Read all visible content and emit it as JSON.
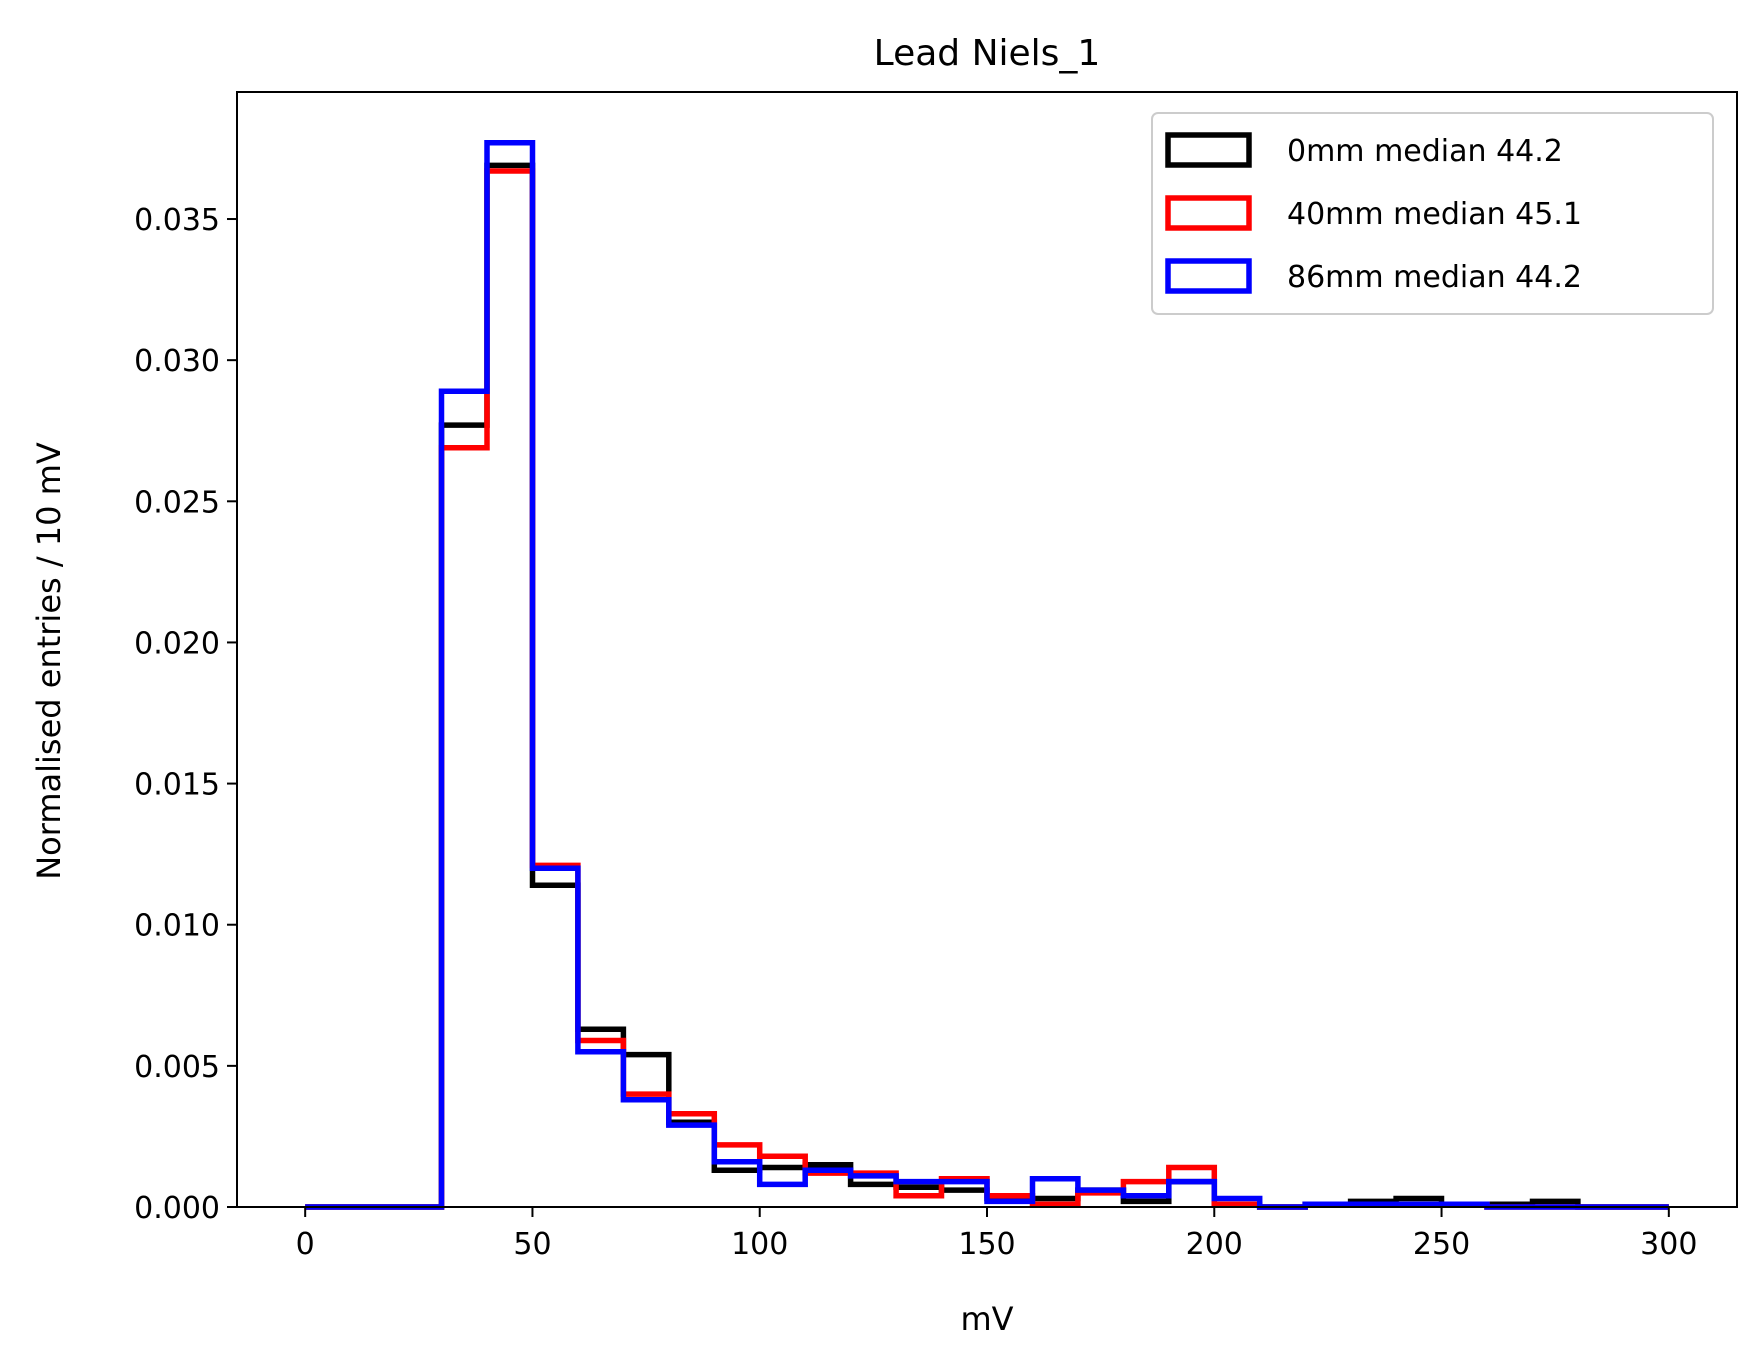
{
  "chart_data": {
    "type": "histogram-step",
    "title": "Lead Niels_1",
    "xlabel": "mV",
    "ylabel": "Normalised entries / 10 mV",
    "xlim": [
      -15,
      315
    ],
    "ylim": [
      0,
      0.0395
    ],
    "xticks": [
      0,
      50,
      100,
      150,
      200,
      250,
      300
    ],
    "xtick_labels": [
      "0",
      "50",
      "100",
      "150",
      "200",
      "250",
      "300"
    ],
    "yticks": [
      0,
      0.005,
      0.01,
      0.015,
      0.02,
      0.025,
      0.03,
      0.035
    ],
    "ytick_labels": [
      "0.000",
      "0.005",
      "0.010",
      "0.015",
      "0.020",
      "0.025",
      "0.030",
      "0.035"
    ],
    "grid": false,
    "legend_position": "top-right",
    "bin_edges": [
      0,
      10,
      20,
      30,
      40,
      50,
      60,
      70,
      80,
      90,
      100,
      110,
      120,
      130,
      140,
      150,
      160,
      170,
      180,
      190,
      200,
      210,
      220,
      230,
      240,
      250,
      260,
      270,
      280,
      290,
      300
    ],
    "series": [
      {
        "name": "0mm median 44.2",
        "color": "#000000",
        "values": [
          0,
          0,
          0,
          0.0277,
          0.0369,
          0.0114,
          0.0063,
          0.0054,
          0.003,
          0.0013,
          0.0014,
          0.0015,
          0.0008,
          0.0007,
          0.0006,
          0.0003,
          0.0003,
          0.0006,
          0.0002,
          0.0009,
          0.0001,
          0,
          0.0001,
          0.0002,
          0.0003,
          0.0001,
          0.0001,
          0.0002,
          0,
          0
        ]
      },
      {
        "name": "40mm median 45.1",
        "color": "#ff0000",
        "values": [
          0,
          0,
          0,
          0.0269,
          0.0367,
          0.0121,
          0.0059,
          0.004,
          0.0033,
          0.0022,
          0.0018,
          0.0012,
          0.0012,
          0.0004,
          0.001,
          0.0004,
          0.0001,
          0.0005,
          0.0009,
          0.0014,
          0.0001,
          0,
          0.0001,
          0.0001,
          0.0001,
          0.0001,
          0,
          0,
          0,
          0
        ]
      },
      {
        "name": "86mm median 44.2",
        "color": "#0000ff",
        "values": [
          0,
          0,
          0,
          0.0289,
          0.0377,
          0.012,
          0.0055,
          0.0038,
          0.0029,
          0.0016,
          0.0008,
          0.0013,
          0.0011,
          0.0009,
          0.0009,
          0.0002,
          0.001,
          0.0006,
          0.0004,
          0.0009,
          0.0003,
          0,
          0.0001,
          0.0001,
          0.0001,
          0.0001,
          0,
          0,
          0,
          0
        ]
      }
    ]
  }
}
